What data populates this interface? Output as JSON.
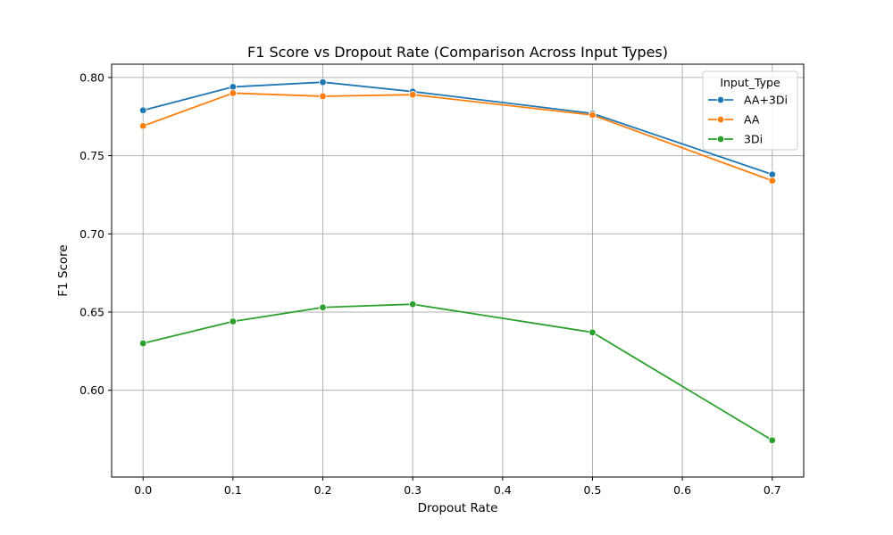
{
  "chart_data": {
    "type": "line",
    "title": "F1 Score vs Dropout Rate (Comparison Across Input Types)",
    "xlabel": "Dropout Rate",
    "ylabel": "F1 Score",
    "x": [
      0.0,
      0.1,
      0.2,
      0.3,
      0.5,
      0.7
    ],
    "xlim": [
      -0.035,
      0.735
    ],
    "ylim": [
      0.5445,
      0.8085
    ],
    "xticks": [
      0.0,
      0.1,
      0.2,
      0.3,
      0.4,
      0.5,
      0.6,
      0.7
    ],
    "xtick_labels": [
      "0.0",
      "0.1",
      "0.2",
      "0.3",
      "0.4",
      "0.5",
      "0.6",
      "0.7"
    ],
    "yticks": [
      0.6,
      0.65,
      0.7,
      0.75,
      0.8
    ],
    "ytick_labels": [
      "0.60",
      "0.65",
      "0.70",
      "0.75",
      "0.80"
    ],
    "grid": true,
    "legend": {
      "title": "Input_Type",
      "position": "top-right"
    },
    "series": [
      {
        "name": "AA+3Di",
        "color": "#1f77b4",
        "values": [
          0.779,
          0.794,
          0.797,
          0.791,
          0.777,
          0.738
        ]
      },
      {
        "name": "AA",
        "color": "#ff7f0e",
        "values": [
          0.769,
          0.79,
          0.788,
          0.789,
          0.776,
          0.734
        ]
      },
      {
        "name": "3Di",
        "color": "#2ca02c",
        "values": [
          0.63,
          0.644,
          0.653,
          0.655,
          0.637,
          0.568
        ]
      }
    ]
  }
}
